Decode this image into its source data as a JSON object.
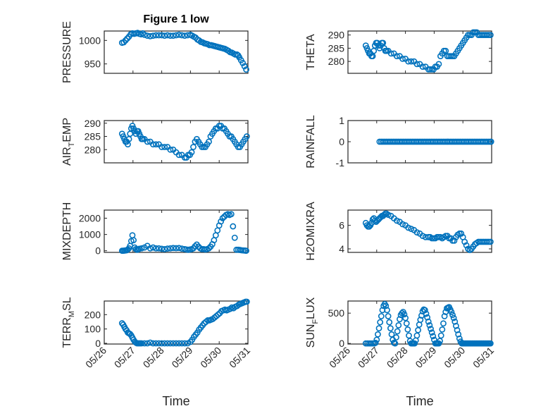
{
  "figure": {
    "colors": {
      "marker": "#0072BD",
      "axes": "#262626",
      "grid": "#d0d0d0",
      "background": "#ffffff"
    }
  },
  "chart_data": [
    {
      "type": "scatter",
      "title": "Figure 1 low",
      "ylabel": "PRESSURE",
      "ylabel_sub": null,
      "xlim": [
        0,
        5
      ],
      "ylim": [
        930,
        1020
      ],
      "yticks": [
        950,
        1000
      ],
      "yticklabels": [
        "950",
        "1000"
      ],
      "xticklabels": [],
      "grid": true,
      "x": [
        0.62,
        0.68,
        0.74,
        0.8,
        0.86,
        0.92,
        0.98,
        1.04,
        1.1,
        1.16,
        1.22,
        1.28,
        1.34,
        1.4,
        1.5,
        1.6,
        1.7,
        1.8,
        1.9,
        2.0,
        2.1,
        2.2,
        2.3,
        2.4,
        2.5,
        2.6,
        2.7,
        2.8,
        2.9,
        3.0,
        3.06,
        3.12,
        3.18,
        3.24,
        3.3,
        3.36,
        3.42,
        3.48,
        3.54,
        3.6,
        3.66,
        3.72,
        3.78,
        3.84,
        3.9,
        3.96,
        4.02,
        4.08,
        4.14,
        4.2,
        4.26,
        4.32,
        4.38,
        4.44,
        4.5,
        4.56,
        4.62,
        4.66,
        4.7,
        4.76,
        4.82,
        4.88,
        4.94
      ],
      "y": [
        995,
        996,
        1000,
        1004,
        1008,
        1013,
        1015,
        1014,
        1015,
        1016,
        1014,
        1013,
        1015,
        1012,
        1010,
        1009,
        1010,
        1011,
        1011,
        1011,
        1010,
        1011,
        1010,
        1010,
        1011,
        1012,
        1011,
        1010,
        1011,
        1012,
        1010,
        1008,
        1006,
        1002,
        1000,
        997,
        996,
        994,
        993,
        992,
        990,
        990,
        989,
        988,
        987,
        986,
        985,
        984,
        983,
        982,
        980,
        978,
        975,
        974,
        972,
        970,
        970,
        968,
        964,
        958,
        952,
        945,
        938
      ]
    },
    {
      "type": "scatter",
      "title": "",
      "ylabel": "THETA",
      "ylabel_sub": null,
      "xlim": [
        0,
        5
      ],
      "ylim": [
        275.5,
        291.5
      ],
      "yticks": [
        280,
        285,
        290
      ],
      "yticklabels": [
        "280",
        "285",
        "290"
      ],
      "xticklabels": [],
      "grid": true,
      "x": [
        0.62,
        0.66,
        0.7,
        0.74,
        0.78,
        0.82,
        0.86,
        0.9,
        0.94,
        0.98,
        1.02,
        1.06,
        1.1,
        1.14,
        1.18,
        1.22,
        1.26,
        1.3,
        1.34,
        1.4,
        1.5,
        1.6,
        1.7,
        1.8,
        1.9,
        2.0,
        2.1,
        2.2,
        2.3,
        2.4,
        2.5,
        2.6,
        2.7,
        2.8,
        2.86,
        2.92,
        2.98,
        3.04,
        3.1,
        3.16,
        3.22,
        3.28,
        3.34,
        3.4,
        3.46,
        3.52,
        3.58,
        3.64,
        3.7,
        3.76,
        3.82,
        3.88,
        3.94,
        4.0,
        4.06,
        4.12,
        4.18,
        4.24,
        4.3,
        4.36,
        4.42,
        4.48,
        4.54,
        4.6,
        4.66,
        4.72,
        4.78,
        4.84,
        4.9,
        4.96
      ],
      "y": [
        286,
        285,
        284,
        283,
        283,
        282,
        282,
        284,
        286,
        287,
        287,
        286,
        285,
        286,
        287,
        287,
        285,
        284,
        284,
        284,
        283,
        283,
        282,
        282,
        281,
        281,
        280,
        280,
        280,
        279,
        279,
        278,
        278,
        277,
        277,
        277,
        277,
        278,
        278,
        279,
        282,
        283,
        284,
        284,
        282,
        282,
        282,
        282,
        282,
        283,
        284,
        285,
        286,
        287,
        288,
        289,
        290,
        290,
        290,
        291,
        291,
        291,
        290,
        290,
        290,
        290,
        290,
        290,
        290,
        290
      ]
    },
    {
      "type": "scatter",
      "title": "",
      "ylabel": "AIR",
      "ylabel_sub": "T",
      "ylabel_rest": "EMP",
      "xlim": [
        0,
        5
      ],
      "ylim": [
        275,
        291
      ],
      "yticks": [
        280,
        285,
        290
      ],
      "yticklabels": [
        "280",
        "285",
        "290"
      ],
      "xticklabels": [],
      "grid": true,
      "x": [
        0.62,
        0.66,
        0.7,
        0.74,
        0.78,
        0.82,
        0.86,
        0.9,
        0.94,
        0.98,
        1.02,
        1.06,
        1.1,
        1.14,
        1.18,
        1.22,
        1.26,
        1.3,
        1.34,
        1.4,
        1.5,
        1.6,
        1.7,
        1.8,
        1.9,
        2.0,
        2.1,
        2.2,
        2.3,
        2.4,
        2.5,
        2.6,
        2.7,
        2.8,
        2.86,
        2.92,
        2.98,
        3.04,
        3.1,
        3.16,
        3.22,
        3.28,
        3.34,
        3.4,
        3.46,
        3.52,
        3.58,
        3.64,
        3.7,
        3.76,
        3.82,
        3.88,
        3.94,
        4.0,
        4.06,
        4.12,
        4.18,
        4.24,
        4.3,
        4.36,
        4.42,
        4.48,
        4.54,
        4.6,
        4.66,
        4.72,
        4.78,
        4.84,
        4.9,
        4.96
      ],
      "y": [
        286,
        285,
        284,
        283,
        283,
        282,
        284,
        286,
        288,
        289,
        288,
        287,
        286,
        287,
        287,
        286,
        285,
        284,
        284,
        284,
        283,
        283,
        282,
        282,
        282,
        281,
        281,
        281,
        280,
        280,
        279,
        278,
        278,
        277,
        277,
        278,
        278,
        279,
        281,
        283,
        284,
        283,
        282,
        281,
        281,
        281,
        282,
        283,
        285,
        286,
        287,
        288,
        288,
        289,
        289,
        288,
        288,
        287,
        286,
        285,
        285,
        284,
        283,
        282,
        281,
        281,
        282,
        283,
        284,
        285
      ]
    },
    {
      "type": "scatter",
      "title": "",
      "ylabel": "RAINFALL",
      "ylabel_sub": null,
      "xlim": [
        0,
        5
      ],
      "ylim": [
        -1,
        1
      ],
      "yticks": [
        -1,
        0,
        1
      ],
      "yticklabels": [
        "-1",
        "0",
        "1"
      ],
      "xticklabels": [],
      "grid": true,
      "x": [
        1.1,
        1.16,
        1.22,
        1.28,
        1.34,
        1.4,
        1.46,
        1.52,
        1.58,
        1.64,
        1.7,
        1.76,
        1.82,
        1.88,
        1.94,
        2.0,
        2.06,
        2.12,
        2.18,
        2.24,
        2.3,
        2.36,
        2.42,
        2.48,
        2.54,
        2.6,
        2.66,
        2.72,
        2.78,
        2.84,
        2.9,
        2.96,
        3.02,
        3.08,
        3.14,
        3.2,
        3.26,
        3.32,
        3.38,
        3.44,
        3.5,
        3.56,
        3.62,
        3.68,
        3.74,
        3.8,
        3.86,
        3.92,
        3.98,
        4.04,
        4.1,
        4.16,
        4.22,
        4.28,
        4.34,
        4.4,
        4.46,
        4.52,
        4.58,
        4.64,
        4.7,
        4.76,
        4.82,
        4.88,
        4.94,
        4.98
      ],
      "y": [
        0,
        0,
        0,
        0,
        0,
        0,
        0,
        0,
        0,
        0,
        0,
        0,
        0,
        0,
        0,
        0,
        0,
        0,
        0,
        0,
        0,
        0,
        0,
        0,
        0,
        0,
        0,
        0,
        0,
        0,
        0,
        0,
        0,
        0,
        0,
        0,
        0,
        0,
        0,
        0,
        0,
        0,
        0,
        0,
        0,
        0,
        0,
        0,
        0,
        0,
        0,
        0,
        0,
        0,
        0,
        0,
        0,
        0,
        0,
        0,
        0,
        0,
        0,
        0,
        0,
        0
      ]
    },
    {
      "type": "scatter",
      "title": "",
      "ylabel": "MIXDEPTH",
      "ylabel_sub": null,
      "xlim": [
        0,
        5
      ],
      "ylim": [
        -100,
        2500
      ],
      "yticks": [
        0,
        1000,
        2000
      ],
      "yticklabels": [
        "0",
        "1000",
        "2000"
      ],
      "xticklabels": [],
      "grid": true,
      "x": [
        0.62,
        0.66,
        0.7,
        0.74,
        0.78,
        0.82,
        0.86,
        0.9,
        0.94,
        0.98,
        1.02,
        1.06,
        1.1,
        1.14,
        1.18,
        1.22,
        1.3,
        1.4,
        1.5,
        1.6,
        1.7,
        1.8,
        1.9,
        2.0,
        2.1,
        2.2,
        2.3,
        2.4,
        2.5,
        2.6,
        2.7,
        2.8,
        2.86,
        2.92,
        2.98,
        3.04,
        3.1,
        3.16,
        3.22,
        3.28,
        3.34,
        3.4,
        3.46,
        3.52,
        3.58,
        3.64,
        3.7,
        3.76,
        3.82,
        3.88,
        3.94,
        4.0,
        4.06,
        4.12,
        4.18,
        4.24,
        4.3,
        4.36,
        4.42,
        4.48,
        4.54,
        4.6,
        4.66,
        4.72,
        4.78,
        4.84,
        4.9,
        4.94
      ],
      "y": [
        0,
        0,
        10,
        20,
        30,
        80,
        150,
        300,
        600,
        950,
        650,
        200,
        100,
        60,
        80,
        120,
        150,
        200,
        300,
        150,
        200,
        150,
        150,
        120,
        100,
        130,
        150,
        170,
        160,
        170,
        130,
        100,
        80,
        60,
        80,
        100,
        150,
        280,
        380,
        250,
        150,
        100,
        100,
        80,
        100,
        150,
        250,
        400,
        650,
        950,
        1250,
        1550,
        1800,
        2000,
        2100,
        2200,
        2250,
        2200,
        2250,
        1500,
        800,
        60,
        60,
        50,
        30,
        20,
        10,
        0
      ]
    },
    {
      "type": "scatter",
      "title": "",
      "ylabel": "H2OMIXRA",
      "ylabel_sub": null,
      "xlim": [
        0,
        5
      ],
      "ylim": [
        3.7,
        7.3
      ],
      "yticks": [
        4,
        6
      ],
      "yticklabels": [
        "4",
        "6"
      ],
      "xticklabels": [],
      "grid": true,
      "x": [
        0.62,
        0.66,
        0.7,
        0.74,
        0.78,
        0.82,
        0.86,
        0.9,
        0.94,
        0.98,
        1.02,
        1.06,
        1.1,
        1.14,
        1.18,
        1.22,
        1.26,
        1.3,
        1.34,
        1.4,
        1.5,
        1.6,
        1.7,
        1.8,
        1.9,
        2.0,
        2.1,
        2.2,
        2.3,
        2.4,
        2.5,
        2.6,
        2.7,
        2.8,
        2.86,
        2.92,
        2.98,
        3.04,
        3.1,
        3.16,
        3.22,
        3.28,
        3.34,
        3.4,
        3.46,
        3.52,
        3.58,
        3.64,
        3.7,
        3.76,
        3.82,
        3.88,
        3.94,
        4.0,
        4.06,
        4.12,
        4.18,
        4.24,
        4.3,
        4.36,
        4.42,
        4.48,
        4.54,
        4.6,
        4.66,
        4.72,
        4.78,
        4.84,
        4.9,
        4.96
      ],
      "y": [
        6.2,
        6.0,
        5.9,
        5.9,
        6.0,
        6.2,
        6.5,
        6.6,
        6.4,
        6.3,
        6.4,
        6.5,
        6.6,
        6.7,
        6.8,
        6.8,
        6.9,
        7.0,
        7.0,
        6.9,
        6.8,
        6.6,
        6.4,
        6.3,
        6.1,
        6.0,
        5.8,
        5.7,
        5.6,
        5.4,
        5.3,
        5.1,
        5.0,
        5.0,
        5.0,
        4.9,
        4.9,
        4.9,
        5.0,
        5.0,
        5.0,
        4.9,
        5.0,
        5.1,
        5.1,
        4.9,
        4.9,
        4.7,
        4.7,
        5.0,
        5.2,
        5.3,
        5.3,
        5.0,
        4.6,
        4.3,
        4.0,
        3.9,
        4.0,
        4.2,
        4.4,
        4.5,
        4.6,
        4.6,
        4.6,
        4.6,
        4.6,
        4.6,
        4.6,
        4.6
      ]
    },
    {
      "type": "scatter",
      "title": "",
      "ylabel": "TERR",
      "ylabel_sub": "M",
      "ylabel_rest": "SL",
      "xlim": [
        0,
        5
      ],
      "ylim": [
        -5,
        295
      ],
      "yticks": [
        0,
        100,
        200
      ],
      "yticklabels": [
        "0",
        "100",
        "200"
      ],
      "xticklabels": [
        "05/26",
        "05/27",
        "05/28",
        "05/29",
        "05/30",
        "05/31"
      ],
      "xlabel": "Time",
      "grid": true,
      "x": [
        0.62,
        0.66,
        0.7,
        0.74,
        0.78,
        0.82,
        0.86,
        0.9,
        0.94,
        0.98,
        1.02,
        1.06,
        1.1,
        1.14,
        1.18,
        1.22,
        1.26,
        1.3,
        1.4,
        1.5,
        1.6,
        1.7,
        1.8,
        1.9,
        2.0,
        2.1,
        2.2,
        2.3,
        2.4,
        2.5,
        2.6,
        2.7,
        2.8,
        2.9,
        3.0,
        3.06,
        3.12,
        3.18,
        3.24,
        3.3,
        3.36,
        3.42,
        3.48,
        3.54,
        3.6,
        3.66,
        3.72,
        3.78,
        3.84,
        3.9,
        3.96,
        4.02,
        4.08,
        4.14,
        4.2,
        4.26,
        4.32,
        4.38,
        4.44,
        4.5,
        4.56,
        4.62,
        4.68,
        4.74,
        4.8,
        4.86,
        4.92,
        4.96
      ],
      "y": [
        140,
        130,
        115,
        100,
        90,
        75,
        70,
        65,
        55,
        40,
        25,
        12,
        5,
        0,
        0,
        0,
        0,
        0,
        0,
        0,
        5,
        0,
        0,
        0,
        0,
        0,
        0,
        0,
        0,
        0,
        0,
        0,
        0,
        0,
        10,
        25,
        45,
        60,
        75,
        95,
        110,
        125,
        140,
        150,
        160,
        160,
        165,
        170,
        180,
        190,
        200,
        210,
        225,
        230,
        235,
        230,
        235,
        240,
        250,
        245,
        255,
        260,
        270,
        275,
        280,
        285,
        290,
        290
      ]
    },
    {
      "type": "scatter",
      "title": "",
      "ylabel": "SUN",
      "ylabel_sub": "F",
      "ylabel_rest": "LUX",
      "xlim": [
        0,
        5
      ],
      "ylim": [
        -10,
        700
      ],
      "yticks": [
        0,
        500
      ],
      "yticklabels": [
        "0",
        "500"
      ],
      "xticklabels": [
        "05/26",
        "05/27",
        "05/28",
        "05/29",
        "05/30",
        "05/31"
      ],
      "xlabel": "Time",
      "grid": true,
      "x": [
        0.62,
        0.68,
        0.74,
        0.8,
        0.86,
        0.92,
        0.96,
        1.0,
        1.04,
        1.08,
        1.12,
        1.16,
        1.2,
        1.24,
        1.28,
        1.32,
        1.36,
        1.4,
        1.44,
        1.48,
        1.52,
        1.56,
        1.6,
        1.64,
        1.68,
        1.72,
        1.76,
        1.8,
        1.84,
        1.88,
        1.92,
        1.96,
        2.0,
        2.04,
        2.08,
        2.12,
        2.16,
        2.2,
        2.24,
        2.28,
        2.32,
        2.36,
        2.4,
        2.44,
        2.48,
        2.52,
        2.56,
        2.6,
        2.64,
        2.68,
        2.72,
        2.76,
        2.8,
        2.84,
        2.88,
        2.92,
        2.96,
        3.0,
        3.04,
        3.08,
        3.12,
        3.16,
        3.2,
        3.24,
        3.28,
        3.32,
        3.36,
        3.4,
        3.44,
        3.48,
        3.52,
        3.56,
        3.6,
        3.64,
        3.68,
        3.72,
        3.76,
        3.8,
        3.84,
        3.88,
        3.92,
        3.96,
        4.0,
        4.04,
        4.08,
        4.12,
        4.16,
        4.2,
        4.24,
        4.28,
        4.32,
        4.36,
        4.4,
        4.44,
        4.48,
        4.52,
        4.56,
        4.6,
        4.64,
        4.68,
        4.72,
        4.76,
        4.8,
        4.84,
        4.88,
        4.92,
        4.96
      ],
      "y": [
        0,
        0,
        0,
        0,
        0,
        0,
        10,
        60,
        150,
        250,
        350,
        450,
        550,
        620,
        650,
        620,
        550,
        450,
        350,
        250,
        150,
        60,
        10,
        0,
        100,
        200,
        300,
        400,
        470,
        500,
        520,
        480,
        420,
        330,
        230,
        130,
        40,
        0,
        0,
        0,
        0,
        50,
        130,
        220,
        310,
        390,
        460,
        530,
        560,
        550,
        490,
        430,
        360,
        300,
        240,
        180,
        120,
        60,
        0,
        0,
        0,
        0,
        40,
        130,
        230,
        330,
        450,
        520,
        580,
        590,
        600,
        560,
        520,
        470,
        420,
        360,
        290,
        220,
        150,
        80,
        30,
        0,
        0,
        0,
        0,
        0,
        0,
        0,
        0,
        0,
        0,
        0,
        0,
        0,
        0,
        0,
        0,
        0,
        0,
        0,
        0,
        0,
        0,
        0,
        0,
        0,
        0
      ]
    }
  ]
}
